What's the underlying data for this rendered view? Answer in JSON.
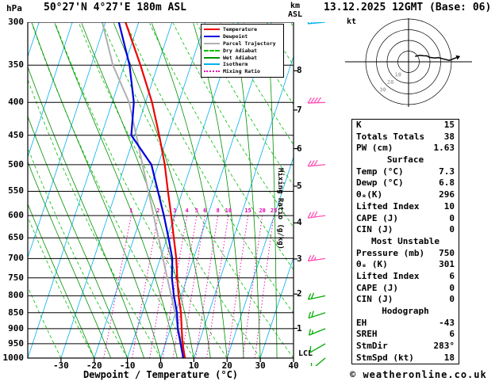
{
  "header": {
    "pressure_unit": "hPa",
    "station": "50°27'N 4°27'E 180m ASL",
    "km_label": "km",
    "asl_label": "ASL",
    "datetime": "13.12.2025 12GMT (Base: 06)"
  },
  "legend": {
    "items": [
      {
        "label": "Temperature",
        "color": "#ee0000",
        "style": "solid"
      },
      {
        "label": "Dewpoint",
        "color": "#0000dd",
        "style": "solid"
      },
      {
        "label": "Parcel Trajectory",
        "color": "#b0b0b0",
        "style": "solid"
      },
      {
        "label": "Dry Adiabat",
        "color": "#00c000",
        "style": "dashed"
      },
      {
        "label": "Wet Adiabat",
        "color": "#009000",
        "style": "solid"
      },
      {
        "label": "Isotherm",
        "color": "#00b0f0",
        "style": "solid"
      },
      {
        "label": "Mixing Ratio",
        "color": "#e800b0",
        "style": "dotted"
      }
    ]
  },
  "axes": {
    "pressure_ticks": [
      300,
      350,
      400,
      450,
      500,
      550,
      600,
      650,
      700,
      750,
      800,
      850,
      900,
      950,
      1000
    ],
    "temp_ticks": [
      -30,
      -20,
      -10,
      0,
      10,
      20,
      30,
      40
    ],
    "km_ticks": [
      8,
      7,
      6,
      5,
      4,
      3,
      2,
      1
    ],
    "xlabel": "Dewpoint / Temperature (°C)",
    "mixing_ratio_label": "Mixing Ratio (g/kg)",
    "lcl_label": "LCL"
  },
  "chart_data": {
    "type": "line",
    "subtype": "skew-t-log-p-sounding",
    "pressure_axis_hpa": {
      "min": 300,
      "max": 1000
    },
    "temp_axis_c": {
      "min": -40,
      "max": 40
    },
    "isotherm_step_c": 10,
    "dry_adiabat_step_c": 10,
    "wet_adiabat_step_c": 5,
    "mixing_ratio_lines_g_kg": [
      1,
      2,
      3,
      4,
      5,
      6,
      8,
      10,
      15,
      20,
      25
    ],
    "pressure_hpa": [
      1000,
      950,
      900,
      850,
      800,
      750,
      700,
      650,
      600,
      550,
      500,
      450,
      400,
      350,
      300
    ],
    "temperature_c": [
      7.3,
      5.2,
      3.4,
      1.6,
      -0.8,
      -3.0,
      -5.2,
      -8.0,
      -11.0,
      -14.4,
      -18.0,
      -22.6,
      -28.0,
      -35.2,
      -44.0
    ],
    "dewpoint_c": [
      6.8,
      4.6,
      2.2,
      0.4,
      -2.2,
      -4.6,
      -6.4,
      -9.6,
      -13.2,
      -17.4,
      -22.0,
      -31.0,
      -33.5,
      -38.5,
      -46.0
    ],
    "parcel_c": [
      7.3,
      4.8,
      2.4,
      -0.2,
      -3.0,
      -6.0,
      -9.2,
      -12.6,
      -16.3,
      -20.3,
      -24.7,
      -29.5,
      -34.9,
      -43.5,
      -51.0
    ],
    "wind_levels": [
      {
        "p": 1000,
        "dir": 230,
        "spd": 8
      },
      {
        "p": 950,
        "dir": 240,
        "spd": 12
      },
      {
        "p": 900,
        "dir": 248,
        "spd": 15
      },
      {
        "p": 850,
        "dir": 252,
        "spd": 18
      },
      {
        "p": 800,
        "dir": 258,
        "spd": 20
      },
      {
        "p": 700,
        "dir": 262,
        "spd": 25
      },
      {
        "p": 600,
        "dir": 262,
        "spd": 28
      },
      {
        "p": 500,
        "dir": 265,
        "spd": 32
      },
      {
        "p": 400,
        "dir": 268,
        "spd": 38
      },
      {
        "p": 300,
        "dir": 265,
        "spd": 45
      }
    ]
  },
  "hodograph": {
    "unit_label": "kt",
    "rings_kt": [
      10,
      20,
      30,
      40
    ],
    "ring_labels": [
      10,
      20,
      30
    ]
  },
  "table": {
    "rows": [
      {
        "label": "K",
        "value": "15"
      },
      {
        "label": "Totals Totals",
        "value": "38"
      },
      {
        "label": "PW (cm)",
        "value": "1.63"
      }
    ],
    "sections": [
      {
        "title": "Surface",
        "rows": [
          {
            "label": "Temp (°C)",
            "value": "7.3"
          },
          {
            "label": "Dewp (°C)",
            "value": "6.8"
          },
          {
            "label": "θₑ(K)",
            "value": "296"
          },
          {
            "label": "Lifted Index",
            "value": "10"
          },
          {
            "label": "CAPE (J)",
            "value": "0"
          },
          {
            "label": "CIN (J)",
            "value": "0"
          }
        ]
      },
      {
        "title": "Most Unstable",
        "rows": [
          {
            "label": "Pressure (mb)",
            "value": "750"
          },
          {
            "label": "θₑ (K)",
            "value": "301"
          },
          {
            "label": "Lifted Index",
            "value": "6"
          },
          {
            "label": "CAPE (J)",
            "value": "0"
          },
          {
            "label": "CIN (J)",
            "value": "0"
          }
        ]
      },
      {
        "title": "Hodograph",
        "rows": [
          {
            "label": "EH",
            "value": "-43"
          },
          {
            "label": "SREH",
            "value": "6"
          },
          {
            "label": "StmDir",
            "value": "283°"
          },
          {
            "label": "StmSpd (kt)",
            "value": "18"
          }
        ]
      }
    ]
  },
  "footer": {
    "copyright": "© weatheronline.co.uk"
  },
  "colors": {
    "temperature": "#ee0000",
    "dewpoint": "#0000dd",
    "parcel": "#b0b0b0",
    "dry_adiabat": "#00c000",
    "wet_adiabat": "#009000",
    "isotherm": "#00b0f0",
    "mixing_ratio": "#e800b0",
    "isobar": "#000000",
    "barb_low": "#00aa00",
    "barb_mid": "#ff50b4",
    "barb_high": "#00b0f0"
  }
}
